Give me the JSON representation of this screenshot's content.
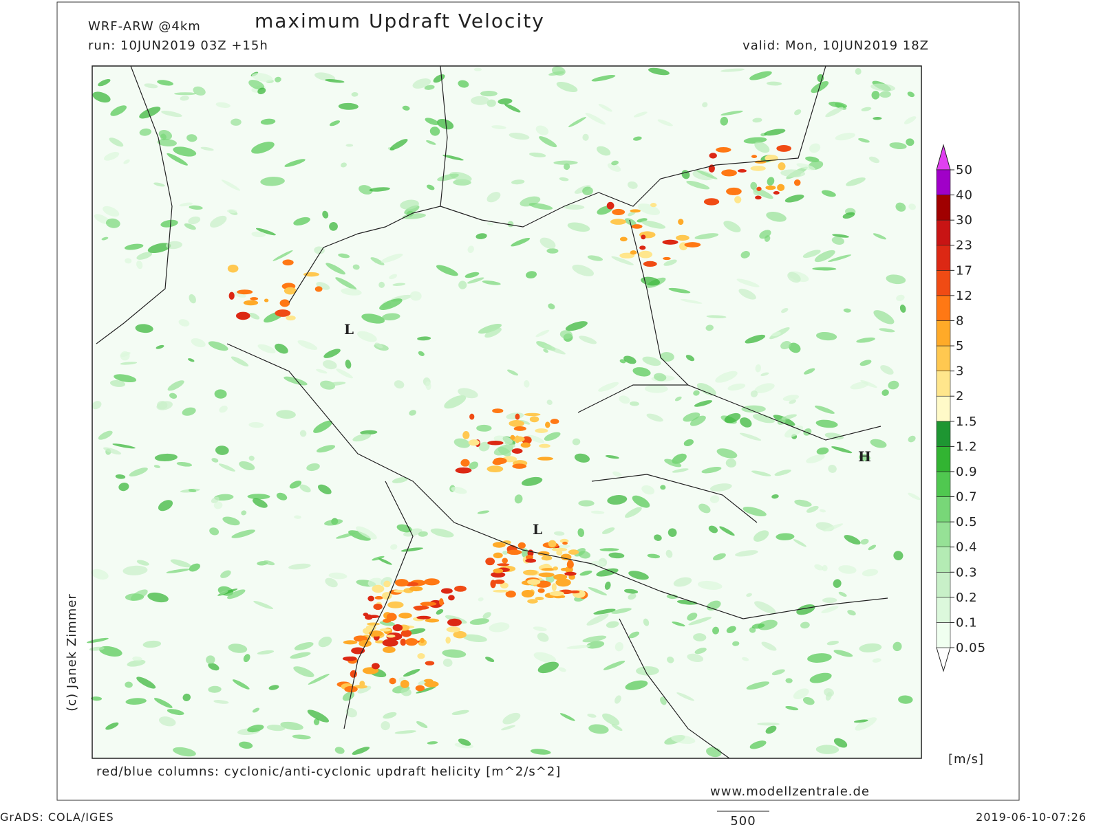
{
  "header": {
    "model": "WRF-ARW @4km",
    "title": "maximum Updraft Velocity",
    "run": "run: 10JUN2019 03Z +15h",
    "valid": "valid: Mon, 10JUN2019 18Z"
  },
  "map": {
    "pressure_labels": [
      "L",
      "L",
      "H"
    ],
    "credit": "(c) Janek Zimmer"
  },
  "colorbar": {
    "levels": [
      0.05,
      0.1,
      0.2,
      0.3,
      0.4,
      0.5,
      0.7,
      0.9,
      1.2,
      1.5,
      2,
      3,
      5,
      8,
      12,
      17,
      23,
      30,
      40,
      50
    ],
    "colors": [
      "#ffffff",
      "#f0fff0",
      "#dcf8dc",
      "#c8f0c8",
      "#b4ebb4",
      "#96e196",
      "#78d778",
      "#50c850",
      "#32b432",
      "#1e9632",
      "#fffac8",
      "#ffe68c",
      "#ffc850",
      "#ffaa28",
      "#ff7814",
      "#f04b14",
      "#dc2814",
      "#c81414",
      "#a00000",
      "#a000c8",
      "#e040f0"
    ],
    "unit": "[m/s]"
  },
  "footer": {
    "note": "red/blue columns: cyclonic/anti-cyclonic updraft helicity [m^2/s^2]",
    "website": "www.modellzentrale.de",
    "software": "GrADS: COLA/IGES",
    "scale": "500",
    "timestamp": "2019-06-10-07:26"
  }
}
